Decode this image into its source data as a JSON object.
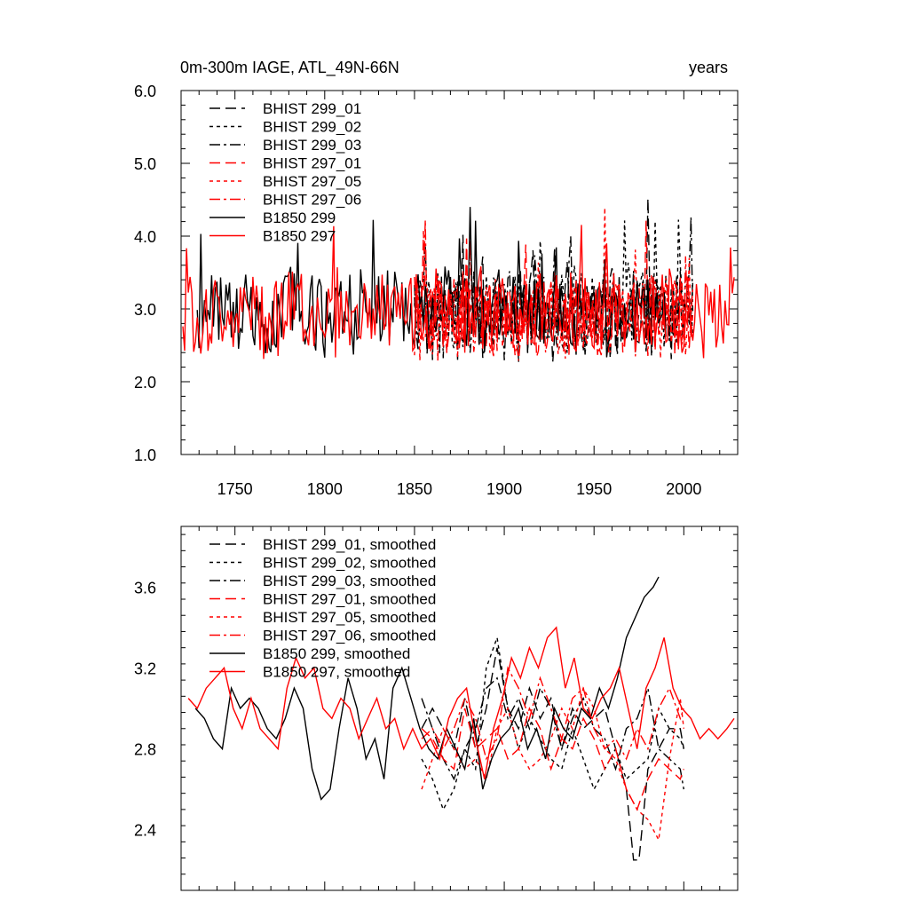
{
  "chart_data": [
    {
      "type": "line",
      "title_left": "0m-300m IAGE, ATL_49N-66N",
      "title_right": "years",
      "xlim": [
        1720,
        2030
      ],
      "ylim": [
        1.0,
        6.0
      ],
      "x_ticks": [
        1750,
        1800,
        1850,
        1900,
        1950,
        2000
      ],
      "y_ticks": [
        1.0,
        2.0,
        3.0,
        4.0,
        5.0,
        6.0
      ],
      "y_tick_labels": [
        "1.0",
        "2.0",
        "3.0",
        "4.0",
        "5.0",
        "6.0"
      ],
      "x_tick_labels": [
        "1750",
        "1800",
        "1850",
        "1900",
        "1950",
        "2000"
      ],
      "series": [
        {
          "name": "BHIST 299_01",
          "color": "#000000",
          "dash": "long",
          "x_start": 1850,
          "x_end": 2005,
          "mean": 2.95,
          "amp": 0.55,
          "seed": 11
        },
        {
          "name": "BHIST 299_02",
          "color": "#000000",
          "dash": "short",
          "x_start": 1850,
          "x_end": 2005,
          "mean": 2.95,
          "amp": 0.55,
          "seed": 12
        },
        {
          "name": "BHIST 299_03",
          "color": "#000000",
          "dash": "dashdot",
          "x_start": 1850,
          "x_end": 2005,
          "mean": 2.95,
          "amp": 0.55,
          "seed": 13
        },
        {
          "name": "BHIST 297_01",
          "color": "#ff0000",
          "dash": "long",
          "x_start": 1850,
          "x_end": 2005,
          "mean": 2.9,
          "amp": 0.5,
          "seed": 21
        },
        {
          "name": "BHIST 297_05",
          "color": "#ff0000",
          "dash": "short",
          "x_start": 1850,
          "x_end": 2005,
          "mean": 2.9,
          "amp": 0.5,
          "seed": 22
        },
        {
          "name": "BHIST 297_06",
          "color": "#ff0000",
          "dash": "dashdot",
          "x_start": 1850,
          "x_end": 2005,
          "mean": 2.9,
          "amp": 0.5,
          "seed": 23
        },
        {
          "name": "B1850 299",
          "color": "#000000",
          "dash": "solid",
          "x_start": 1729,
          "x_end": 1990,
          "mean": 2.95,
          "amp": 0.5,
          "seed": 31
        },
        {
          "name": "B1850 297",
          "color": "#ff0000",
          "dash": "solid",
          "x_start": 1721,
          "x_end": 2028,
          "mean": 2.95,
          "amp": 0.5,
          "seed": 32
        }
      ]
    },
    {
      "type": "line",
      "xlim": [
        1720,
        2030
      ],
      "ylim": [
        2.1,
        3.9
      ],
      "x_ticks": [
        1750,
        1800,
        1850,
        1900,
        1950,
        2000
      ],
      "y_ticks": [
        2.4,
        2.8,
        3.2,
        3.6
      ],
      "y_tick_labels": [
        "2.4",
        "2.8",
        "3.2",
        "3.6"
      ],
      "series": [
        {
          "name": "BHIST 299_01, smoothed",
          "color": "#000000",
          "dash": "long",
          "x": [
            1854,
            1860,
            1866,
            1872,
            1878,
            1884,
            1890,
            1896,
            1902,
            1908,
            1914,
            1920,
            1926,
            1932,
            1938,
            1944,
            1950,
            1956,
            1962,
            1968,
            1972,
            1975,
            1980,
            1986,
            1992,
            1998,
            2000
          ],
          "y": [
            2.9,
            3.0,
            2.9,
            2.8,
            3.05,
            2.8,
            3.0,
            3.3,
            3.0,
            2.9,
            3.1,
            2.95,
            3.05,
            2.8,
            3.0,
            2.9,
            2.95,
            3.0,
            2.8,
            2.6,
            2.25,
            2.25,
            2.7,
            2.8,
            2.9,
            2.9,
            2.8
          ]
        },
        {
          "name": "BHIST 299_02, smoothed",
          "color": "#000000",
          "dash": "short",
          "x": [
            1854,
            1860,
            1866,
            1872,
            1878,
            1884,
            1890,
            1896,
            1902,
            1908,
            1914,
            1920,
            1926,
            1932,
            1938,
            1944,
            1950,
            1956,
            1962,
            1968,
            1974,
            1980,
            1986,
            1992,
            1998,
            2000
          ],
          "y": [
            2.75,
            2.65,
            2.5,
            2.6,
            2.8,
            2.7,
            3.2,
            3.35,
            3.0,
            2.8,
            2.95,
            2.85,
            2.75,
            2.7,
            2.9,
            2.75,
            2.6,
            2.7,
            2.8,
            2.65,
            2.7,
            2.75,
            3.0,
            2.9,
            2.85,
            2.8
          ]
        },
        {
          "name": "BHIST 299_03, smoothed",
          "color": "#000000",
          "dash": "dashdot",
          "x": [
            1854,
            1860,
            1866,
            1872,
            1878,
            1884,
            1890,
            1896,
            1902,
            1908,
            1914,
            1920,
            1926,
            1932,
            1938,
            1944,
            1950,
            1956,
            1962,
            1968,
            1974,
            1980,
            1986,
            1992,
            1998,
            2000
          ],
          "y": [
            3.05,
            2.9,
            2.75,
            2.65,
            2.8,
            2.9,
            3.1,
            3.15,
            2.95,
            3.05,
            2.9,
            3.1,
            3.0,
            2.8,
            2.95,
            3.05,
            2.9,
            2.85,
            2.7,
            2.9,
            2.95,
            3.1,
            2.8,
            2.75,
            2.7,
            2.6
          ]
        },
        {
          "name": "BHIST 297_01, smoothed",
          "color": "#ff0000",
          "dash": "long",
          "x": [
            1854,
            1860,
            1866,
            1872,
            1878,
            1884,
            1890,
            1896,
            1902,
            1908,
            1914,
            1920,
            1926,
            1932,
            1938,
            1944,
            1950,
            1956,
            1962,
            1968,
            1974,
            1980,
            1986,
            1992,
            1998,
            2000
          ],
          "y": [
            2.9,
            2.85,
            2.75,
            2.7,
            3.0,
            2.8,
            2.85,
            2.9,
            2.75,
            2.8,
            3.0,
            2.9,
            2.7,
            2.85,
            2.8,
            2.95,
            2.85,
            2.7,
            2.8,
            2.6,
            2.5,
            2.65,
            2.75,
            2.7,
            2.65,
            2.7
          ]
        },
        {
          "name": "BHIST 297_05, smoothed",
          "color": "#ff0000",
          "dash": "short",
          "x": [
            1854,
            1860,
            1866,
            1872,
            1878,
            1884,
            1890,
            1896,
            1902,
            1908,
            1914,
            1920,
            1926,
            1932,
            1938,
            1944,
            1950,
            1956,
            1962,
            1968,
            1974,
            1980,
            1986,
            1992,
            1998,
            2000
          ],
          "y": [
            2.6,
            2.75,
            2.9,
            2.8,
            2.7,
            2.75,
            2.65,
            2.9,
            3.0,
            2.8,
            2.7,
            2.75,
            2.85,
            3.0,
            2.9,
            3.1,
            3.0,
            2.8,
            2.75,
            2.6,
            2.5,
            2.45,
            2.35,
            2.75,
            3.05,
            2.9
          ]
        },
        {
          "name": "BHIST 297_06, smoothed",
          "color": "#ff0000",
          "dash": "dashdot",
          "x": [
            1854,
            1860,
            1866,
            1872,
            1878,
            1884,
            1890,
            1896,
            1902,
            1908,
            1914,
            1920,
            1926,
            1932,
            1938,
            1944,
            1950,
            1956,
            1962,
            1968,
            1974,
            1980,
            1986,
            1992,
            1998,
            2000
          ],
          "y": [
            2.85,
            2.9,
            2.8,
            2.9,
            3.05,
            2.95,
            2.75,
            2.85,
            3.2,
            3.1,
            2.95,
            3.15,
            3.0,
            2.85,
            3.05,
            3.1,
            2.9,
            2.8,
            2.85,
            2.75,
            2.9,
            2.8,
            3.0,
            3.1,
            2.95,
            3.0
          ]
        },
        {
          "name": "B1850 299, smoothed",
          "color": "#000000",
          "dash": "solid",
          "x": [
            1728,
            1733,
            1738,
            1743,
            1748,
            1753,
            1758,
            1763,
            1768,
            1773,
            1778,
            1783,
            1788,
            1793,
            1798,
            1803,
            1808,
            1813,
            1818,
            1823,
            1828,
            1833,
            1838,
            1843,
            1848,
            1853,
            1858,
            1863,
            1868,
            1873,
            1878,
            1883,
            1888,
            1893,
            1898,
            1903,
            1908,
            1913,
            1918,
            1923,
            1928,
            1933,
            1938,
            1943,
            1948,
            1953,
            1958,
            1963,
            1968,
            1973,
            1978,
            1983,
            1986
          ],
          "y": [
            3.0,
            2.95,
            2.85,
            2.8,
            3.1,
            3.0,
            3.05,
            3.0,
            2.9,
            2.85,
            2.95,
            3.1,
            3.0,
            2.7,
            2.55,
            2.6,
            2.9,
            3.15,
            3.0,
            2.75,
            2.85,
            2.65,
            3.1,
            3.2,
            3.05,
            2.9,
            2.8,
            2.75,
            2.9,
            2.8,
            2.7,
            2.95,
            2.6,
            2.75,
            2.85,
            2.9,
            3.0,
            2.8,
            2.9,
            2.75,
            3.0,
            2.9,
            2.85,
            3.0,
            2.95,
            3.1,
            3.0,
            3.15,
            3.35,
            3.45,
            3.55,
            3.6,
            3.65
          ]
        },
        {
          "name": "B1850 297, smoothed",
          "color": "#ff0000",
          "dash": "solid",
          "x": [
            1724,
            1729,
            1734,
            1739,
            1744,
            1749,
            1754,
            1759,
            1764,
            1769,
            1774,
            1779,
            1784,
            1789,
            1794,
            1799,
            1804,
            1809,
            1814,
            1819,
            1824,
            1829,
            1834,
            1839,
            1844,
            1849,
            1854,
            1859,
            1864,
            1869,
            1874,
            1879,
            1884,
            1889,
            1894,
            1899,
            1904,
            1909,
            1914,
            1919,
            1924,
            1929,
            1934,
            1939,
            1944,
            1949,
            1954,
            1959,
            1964,
            1969,
            1974,
            1979,
            1984,
            1989,
            1994,
            1999,
            2004,
            2009,
            2014,
            2019,
            2024,
            2028
          ],
          "y": [
            3.05,
            3.0,
            3.1,
            3.15,
            3.2,
            3.0,
            2.9,
            3.05,
            2.9,
            2.85,
            2.8,
            3.1,
            3.25,
            3.15,
            3.2,
            3.0,
            2.95,
            3.05,
            3.0,
            2.85,
            2.95,
            3.05,
            2.9,
            2.95,
            2.8,
            2.9,
            2.8,
            2.85,
            2.75,
            2.95,
            3.05,
            3.1,
            2.85,
            2.65,
            2.9,
            3.05,
            3.25,
            3.15,
            3.3,
            3.2,
            3.35,
            3.4,
            3.1,
            3.25,
            3.0,
            2.95,
            3.05,
            3.1,
            3.2,
            3.0,
            2.8,
            3.1,
            3.2,
            3.35,
            3.1,
            3.0,
            2.95,
            2.85,
            2.9,
            2.85,
            2.9,
            2.95
          ]
        }
      ]
    }
  ]
}
